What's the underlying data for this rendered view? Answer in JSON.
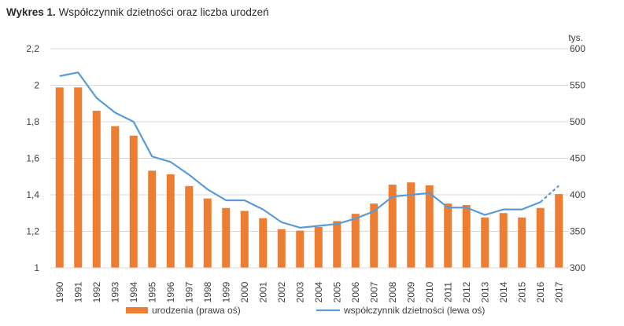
{
  "title": {
    "prefix": "Wykres 1.",
    "text": "Współczynnik dzietności oraz liczba urodzeń"
  },
  "chart_data": {
    "type": "bar+line",
    "categories": [
      "1990",
      "1991",
      "1992",
      "1993",
      "1994",
      "1995",
      "1996",
      "1997",
      "1998",
      "1999",
      "2000",
      "2001",
      "2002",
      "2003",
      "2004",
      "2005",
      "2006",
      "2007",
      "2008",
      "2009",
      "2010",
      "2011",
      "2012",
      "2013",
      "2014",
      "2015",
      "2016",
      "2017"
    ],
    "series": [
      {
        "name": "urodzenia (prawa oś)",
        "type": "bar",
        "axis": "right",
        "color": "#ED7D31",
        "values": [
          547,
          547,
          515,
          494,
          481,
          433,
          428,
          412,
          395,
          382,
          378,
          368,
          353,
          351,
          356,
          364,
          374,
          388,
          414,
          417,
          413,
          388,
          386,
          369,
          375,
          369,
          382,
          401
        ]
      },
      {
        "name": "współczynnik dzietności (lewa oś)",
        "type": "line",
        "axis": "left",
        "color": "#5B9BD5",
        "values": [
          2.05,
          2.07,
          1.93,
          1.85,
          1.8,
          1.61,
          1.58,
          1.51,
          1.43,
          1.37,
          1.37,
          1.32,
          1.25,
          1.22,
          1.23,
          1.24,
          1.27,
          1.31,
          1.39,
          1.4,
          1.41,
          1.33,
          1.33,
          1.29,
          1.32,
          1.32,
          1.36,
          1.45
        ],
        "dashed_from_index": 26
      }
    ],
    "y_left": {
      "min": 1,
      "max": 2.2,
      "ticks": [
        "1",
        "1,2",
        "1,4",
        "1,6",
        "1,8",
        "2",
        "2,2"
      ]
    },
    "y_right": {
      "min": 300,
      "max": 600,
      "ticks": [
        "300",
        "350",
        "400",
        "450",
        "500",
        "550",
        "600"
      ],
      "unit": "tys."
    },
    "grid": true,
    "legend_position": "bottom"
  }
}
